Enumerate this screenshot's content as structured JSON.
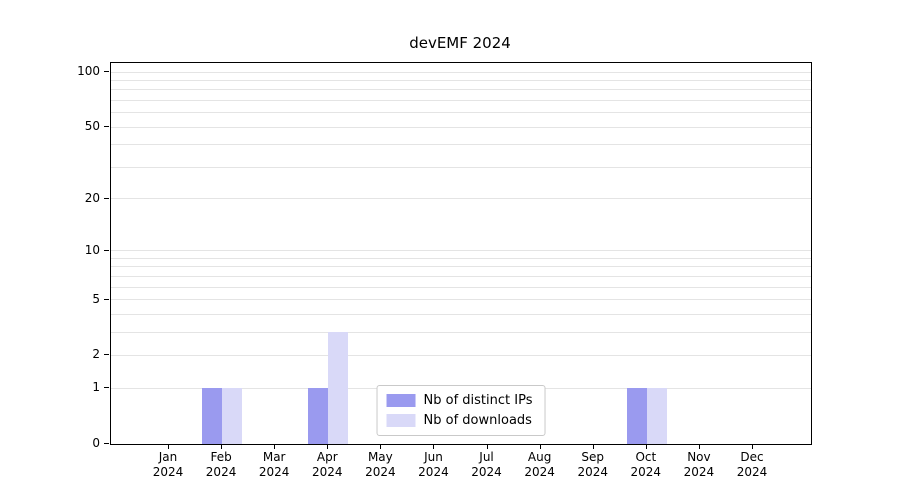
{
  "chart_data": {
    "type": "bar",
    "title": "devEMF 2024",
    "year": "2024",
    "categories": [
      "Jan",
      "Feb",
      "Mar",
      "Apr",
      "May",
      "Jun",
      "Jul",
      "Aug",
      "Sep",
      "Oct",
      "Nov",
      "Dec"
    ],
    "series": [
      {
        "name": "Nb of distinct IPs",
        "color": "#9a9aef",
        "values": [
          0,
          1,
          0,
          1,
          0,
          0,
          0,
          0,
          0,
          1,
          0,
          0
        ]
      },
      {
        "name": "Nb of downloads",
        "color": "#d9d9f8",
        "values": [
          0,
          1,
          0,
          3,
          0,
          0,
          0,
          0,
          0,
          1,
          0,
          0
        ]
      }
    ],
    "yticks": [
      0,
      1,
      2,
      5,
      10,
      20,
      50,
      100
    ],
    "gridlines": [
      1,
      2,
      3,
      4,
      5,
      6,
      7,
      8,
      9,
      10,
      20,
      30,
      40,
      50,
      60,
      70,
      80,
      90,
      100
    ],
    "scale": "log1p",
    "ymax": 112,
    "ylim": [
      0,
      112
    ],
    "legend_position": "inside-bottom-center",
    "grid": true
  }
}
